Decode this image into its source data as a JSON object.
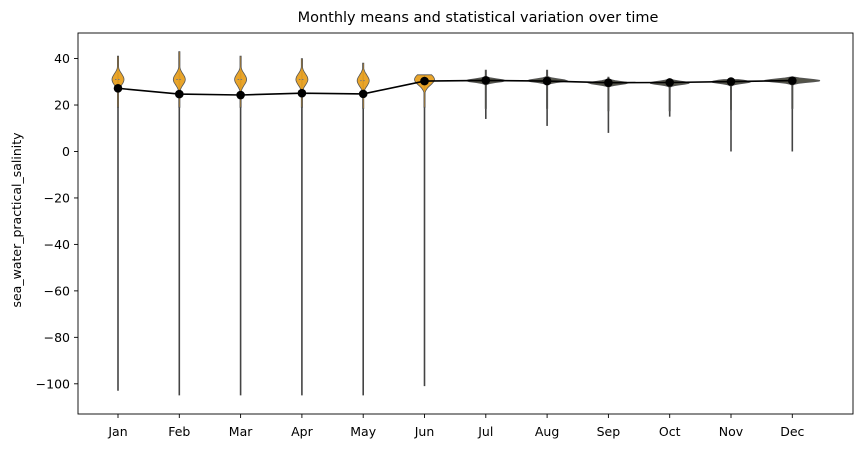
{
  "chart_data": {
    "type": "violin",
    "title": "Monthly means and statistical variation over time",
    "xlabel": "",
    "ylabel": "sea_water_practical_salinity",
    "categories": [
      "Jan",
      "Feb",
      "Mar",
      "Apr",
      "May",
      "Jun",
      "Jul",
      "Aug",
      "Sep",
      "Oct",
      "Nov",
      "Dec"
    ],
    "ylim": [
      -113,
      51
    ],
    "yticks": [
      40,
      20,
      0,
      -20,
      -40,
      -60,
      -80,
      -100
    ],
    "grid": false,
    "series": [
      {
        "kind": "violin",
        "min": [
          -103,
          -105,
          -105,
          -105,
          -105,
          -101,
          14,
          11,
          8,
          15,
          0,
          0
        ],
        "max": [
          41,
          43,
          41,
          40,
          38,
          33,
          35,
          35,
          32,
          31,
          31,
          32
        ],
        "median": [
          31,
          31,
          31,
          31,
          30.5,
          31,
          30.5,
          30.5,
          29.5,
          29.5,
          30,
          30.5
        ],
        "colors": [
          "#e8a020",
          "#e8a020",
          "#e8a020",
          "#e8a020",
          "#e8a020",
          "#e8a020",
          "#4a4a3e",
          "#4a4a3e",
          "#4a4a3e",
          "#4a4a3e",
          "#4a4a3e",
          "#4a4a3e"
        ]
      },
      {
        "kind": "line",
        "values": [
          27.2,
          24.7,
          24.3,
          25.1,
          24.8,
          30.3,
          30.6,
          30.3,
          29.6,
          29.7,
          30.1,
          30.5
        ],
        "color": "#000000"
      }
    ]
  }
}
